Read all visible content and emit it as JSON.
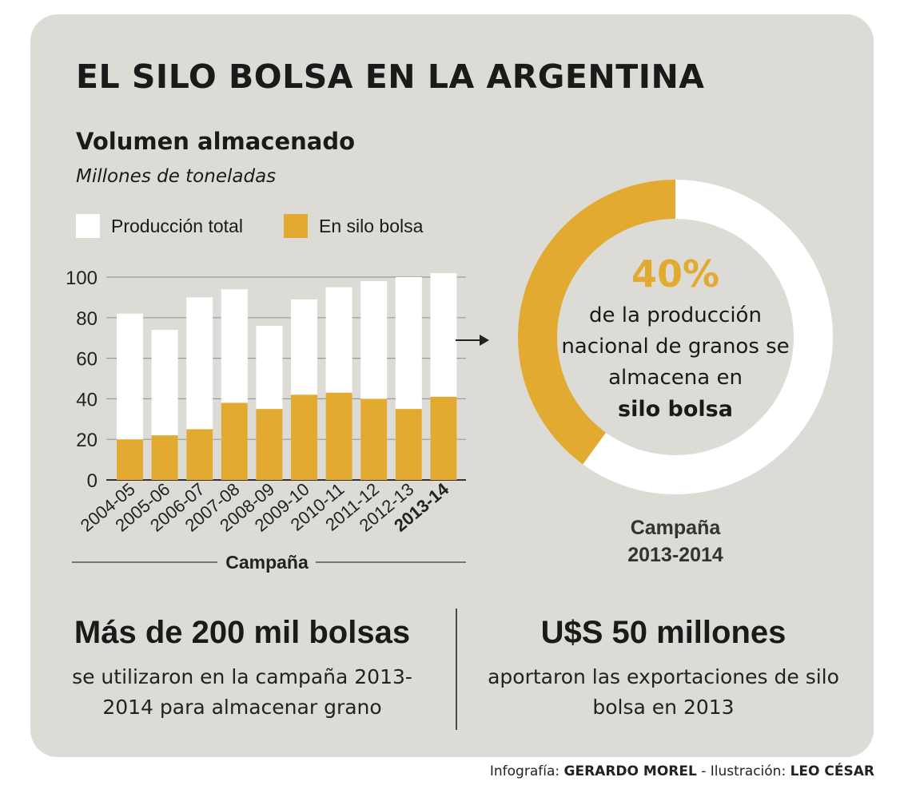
{
  "header": {
    "title": "EL SILO BOLSA EN LA ARGENTINA"
  },
  "chart_data": [
    {
      "type": "bar",
      "title": "Volumen almacenado",
      "subtitle": "Millones de toneladas",
      "xlabel": "Campaña",
      "ylabel": "",
      "ylim": [
        0,
        100
      ],
      "yticks": [
        "0",
        "20",
        "40",
        "60",
        "80",
        "100"
      ],
      "grid": true,
      "legend_position": "top-left",
      "categories": [
        "2004-05",
        "2005-06",
        "2006-07",
        "2007-08",
        "2008-09",
        "2009-10",
        "2010-11",
        "2011-12",
        "2012-13",
        "2013-14"
      ],
      "highlighted_category": "2013-14",
      "series": [
        {
          "name": "Producción total",
          "color": "#ffffff",
          "values": [
            82,
            74,
            90,
            94,
            76,
            89,
            95,
            98,
            100,
            102
          ]
        },
        {
          "name": "En silo bolsa",
          "color": "#e3aa31",
          "values": [
            20,
            22,
            25,
            38,
            35,
            42,
            43,
            40,
            35,
            41
          ]
        }
      ]
    },
    {
      "type": "pie",
      "style": "donut",
      "slices": [
        {
          "label": "silo bolsa",
          "value": 40,
          "color": "#e3aa31"
        },
        {
          "label": "",
          "value": 60,
          "color": "#ffffff"
        }
      ],
      "center_value": "40%",
      "center_text": "de la producción nacional de granos se almacena en",
      "center_highlight": "silo bolsa",
      "caption_line1": "Campaña",
      "caption_line2": "2013-2014"
    }
  ],
  "facts": {
    "left": {
      "headline": "Más de 200 mil bolsas",
      "text": "se utilizaron en la campaña 2013-2014 para almacenar grano"
    },
    "right": {
      "headline": "U$S 50 millones",
      "text": "aportaron las exportaciones de silo bolsa en 2013"
    }
  },
  "credits": {
    "infografia_label": "Infografía:",
    "infografia_name": "GERARDO MOREL",
    "separator": "-",
    "ilustracion_label": "Ilustración:",
    "ilustracion_name": "LEO CÉSAR"
  },
  "colors": {
    "background": "#dcdbd6",
    "accent": "#e3aa31",
    "text": "#1a1a1a"
  }
}
